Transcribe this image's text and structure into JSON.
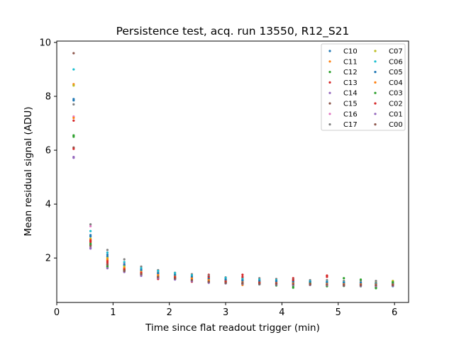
{
  "chart_data": {
    "type": "scatter",
    "title": "Persistence test, acq. run 13550, R12_S21",
    "xlabel": "Time since flat readout trigger (min)",
    "ylabel": "Mean residual signal (ADU)",
    "xlim": [
      0,
      6.25
    ],
    "ylim": [
      0.35,
      10.05
    ],
    "xticks": [
      0,
      1,
      2,
      3,
      4,
      5,
      6
    ],
    "yticks": [
      2,
      4,
      6,
      8,
      10
    ],
    "grid": false,
    "legend_position": "top-right",
    "legend_columns": 2,
    "x": [
      0.3,
      0.6,
      0.9,
      1.2,
      1.5,
      1.8,
      2.1,
      2.4,
      2.7,
      3.0,
      3.3,
      3.6,
      3.9,
      4.2,
      4.5,
      4.8,
      5.1,
      5.4,
      5.67,
      5.97
    ],
    "series": [
      {
        "name": "C10",
        "color": "#1f77b4",
        "values": [
          7.9,
          2.8,
          2.05,
          1.72,
          1.52,
          1.42,
          1.36,
          1.28,
          1.22,
          1.18,
          1.15,
          1.14,
          1.12,
          1.1,
          1.1,
          1.08,
          1.06,
          1.06,
          1.05,
          1.05
        ]
      },
      {
        "name": "C11",
        "color": "#ff7f0e",
        "values": [
          8.45,
          2.62,
          1.92,
          1.65,
          1.48,
          1.38,
          1.32,
          1.25,
          1.2,
          1.15,
          1.12,
          1.1,
          1.1,
          1.08,
          1.06,
          1.05,
          1.05,
          1.04,
          1.04,
          1.04
        ]
      },
      {
        "name": "C12",
        "color": "#2ca02c",
        "values": [
          6.55,
          2.55,
          1.7,
          1.52,
          1.4,
          1.3,
          1.25,
          1.18,
          1.12,
          1.08,
          1.05,
          1.03,
          1.0,
          0.9,
          1.0,
          0.98,
          0.96,
          0.95,
          0.88,
          1.0
        ]
      },
      {
        "name": "C13",
        "color": "#d62728",
        "values": [
          7.1,
          2.6,
          1.82,
          1.6,
          1.45,
          1.25,
          1.3,
          1.22,
          1.38,
          1.15,
          1.38,
          1.1,
          1.08,
          1.25,
          1.05,
          1.35,
          1.0,
          1.02,
          1.0,
          1.02
        ]
      },
      {
        "name": "C14",
        "color": "#9467bd",
        "values": [
          5.75,
          2.38,
          1.65,
          1.5,
          1.35,
          1.28,
          1.22,
          1.15,
          1.1,
          1.08,
          1.05,
          1.04,
          1.02,
          1.02,
          1.02,
          1.0,
          1.0,
          0.98,
          0.98,
          0.98
        ]
      },
      {
        "name": "C15",
        "color": "#8c564b",
        "values": [
          6.1,
          2.48,
          1.76,
          1.55,
          1.42,
          1.32,
          1.26,
          1.2,
          1.15,
          1.1,
          1.08,
          1.06,
          1.05,
          1.04,
          1.03,
          1.02,
          1.01,
          1.0,
          1.0,
          1.0
        ]
      },
      {
        "name": "C16",
        "color": "#e377c2",
        "values": [
          7.25,
          3.18,
          2.2,
          1.8,
          1.6,
          1.5,
          1.4,
          1.35,
          1.3,
          1.25,
          1.2,
          1.2,
          1.18,
          1.15,
          1.15,
          1.12,
          1.12,
          1.1,
          1.1,
          1.1
        ]
      },
      {
        "name": "C17",
        "color": "#7f7f7f",
        "values": [
          7.7,
          3.25,
          2.3,
          1.95,
          1.68,
          1.55,
          1.45,
          1.4,
          1.35,
          1.28,
          1.25,
          1.25,
          1.22,
          1.2,
          1.18,
          1.18,
          1.15,
          1.15,
          1.15,
          1.12
        ]
      },
      {
        "name": "C07",
        "color": "#bcbd22",
        "values": [
          8.4,
          2.72,
          2.0,
          1.7,
          1.55,
          1.45,
          1.38,
          1.3,
          1.25,
          1.2,
          1.18,
          1.15,
          1.15,
          1.12,
          1.12,
          1.1,
          1.1,
          1.08,
          1.08,
          1.15
        ]
      },
      {
        "name": "C06",
        "color": "#17becf",
        "values": [
          9.0,
          3.0,
          2.2,
          1.85,
          1.62,
          1.52,
          1.44,
          1.36,
          1.3,
          1.26,
          1.22,
          1.2,
          1.18,
          1.16,
          1.14,
          1.12,
          1.1,
          1.08,
          1.05,
          0.95
        ]
      },
      {
        "name": "C05",
        "color": "#1f77b4",
        "values": [
          7.85,
          2.85,
          2.12,
          1.76,
          1.56,
          1.44,
          1.37,
          1.3,
          1.24,
          1.2,
          1.17,
          1.15,
          1.14,
          1.12,
          1.11,
          1.1,
          1.08,
          1.07,
          1.06,
          1.06
        ]
      },
      {
        "name": "C04",
        "color": "#ff7f0e",
        "values": [
          7.2,
          2.68,
          1.95,
          1.62,
          1.46,
          1.36,
          1.3,
          1.24,
          1.18,
          1.12,
          1.0,
          1.08,
          1.06,
          1.05,
          1.04,
          1.03,
          1.02,
          1.02,
          1.01,
          1.01
        ]
      },
      {
        "name": "C03",
        "color": "#2ca02c",
        "values": [
          6.5,
          2.5,
          1.68,
          1.55,
          1.38,
          1.28,
          1.22,
          1.16,
          1.1,
          1.06,
          1.04,
          1.02,
          0.98,
          0.96,
          1.05,
          0.95,
          1.25,
          1.2,
          0.92,
          1.1
        ]
      },
      {
        "name": "C02",
        "color": "#d62728",
        "values": [
          6.05,
          2.65,
          1.88,
          1.58,
          1.44,
          1.22,
          1.28,
          1.12,
          1.3,
          1.12,
          1.3,
          1.08,
          1.05,
          1.18,
          1.03,
          1.3,
          0.98,
          1.0,
          0.96,
          1.0
        ]
      },
      {
        "name": "C01",
        "color": "#9467bd",
        "values": [
          5.72,
          2.35,
          1.62,
          1.48,
          1.34,
          1.26,
          1.2,
          1.14,
          1.08,
          1.06,
          1.04,
          1.03,
          1.01,
          1.0,
          1.0,
          0.99,
          0.98,
          0.96,
          0.96,
          0.96
        ]
      },
      {
        "name": "C00",
        "color": "#8c564b",
        "values": [
          9.6,
          2.45,
          1.75,
          1.52,
          1.4,
          1.3,
          1.24,
          1.18,
          1.12,
          1.08,
          1.06,
          1.05,
          1.04,
          1.03,
          1.02,
          1.01,
          1.0,
          0.99,
          0.99,
          0.99
        ]
      }
    ]
  }
}
